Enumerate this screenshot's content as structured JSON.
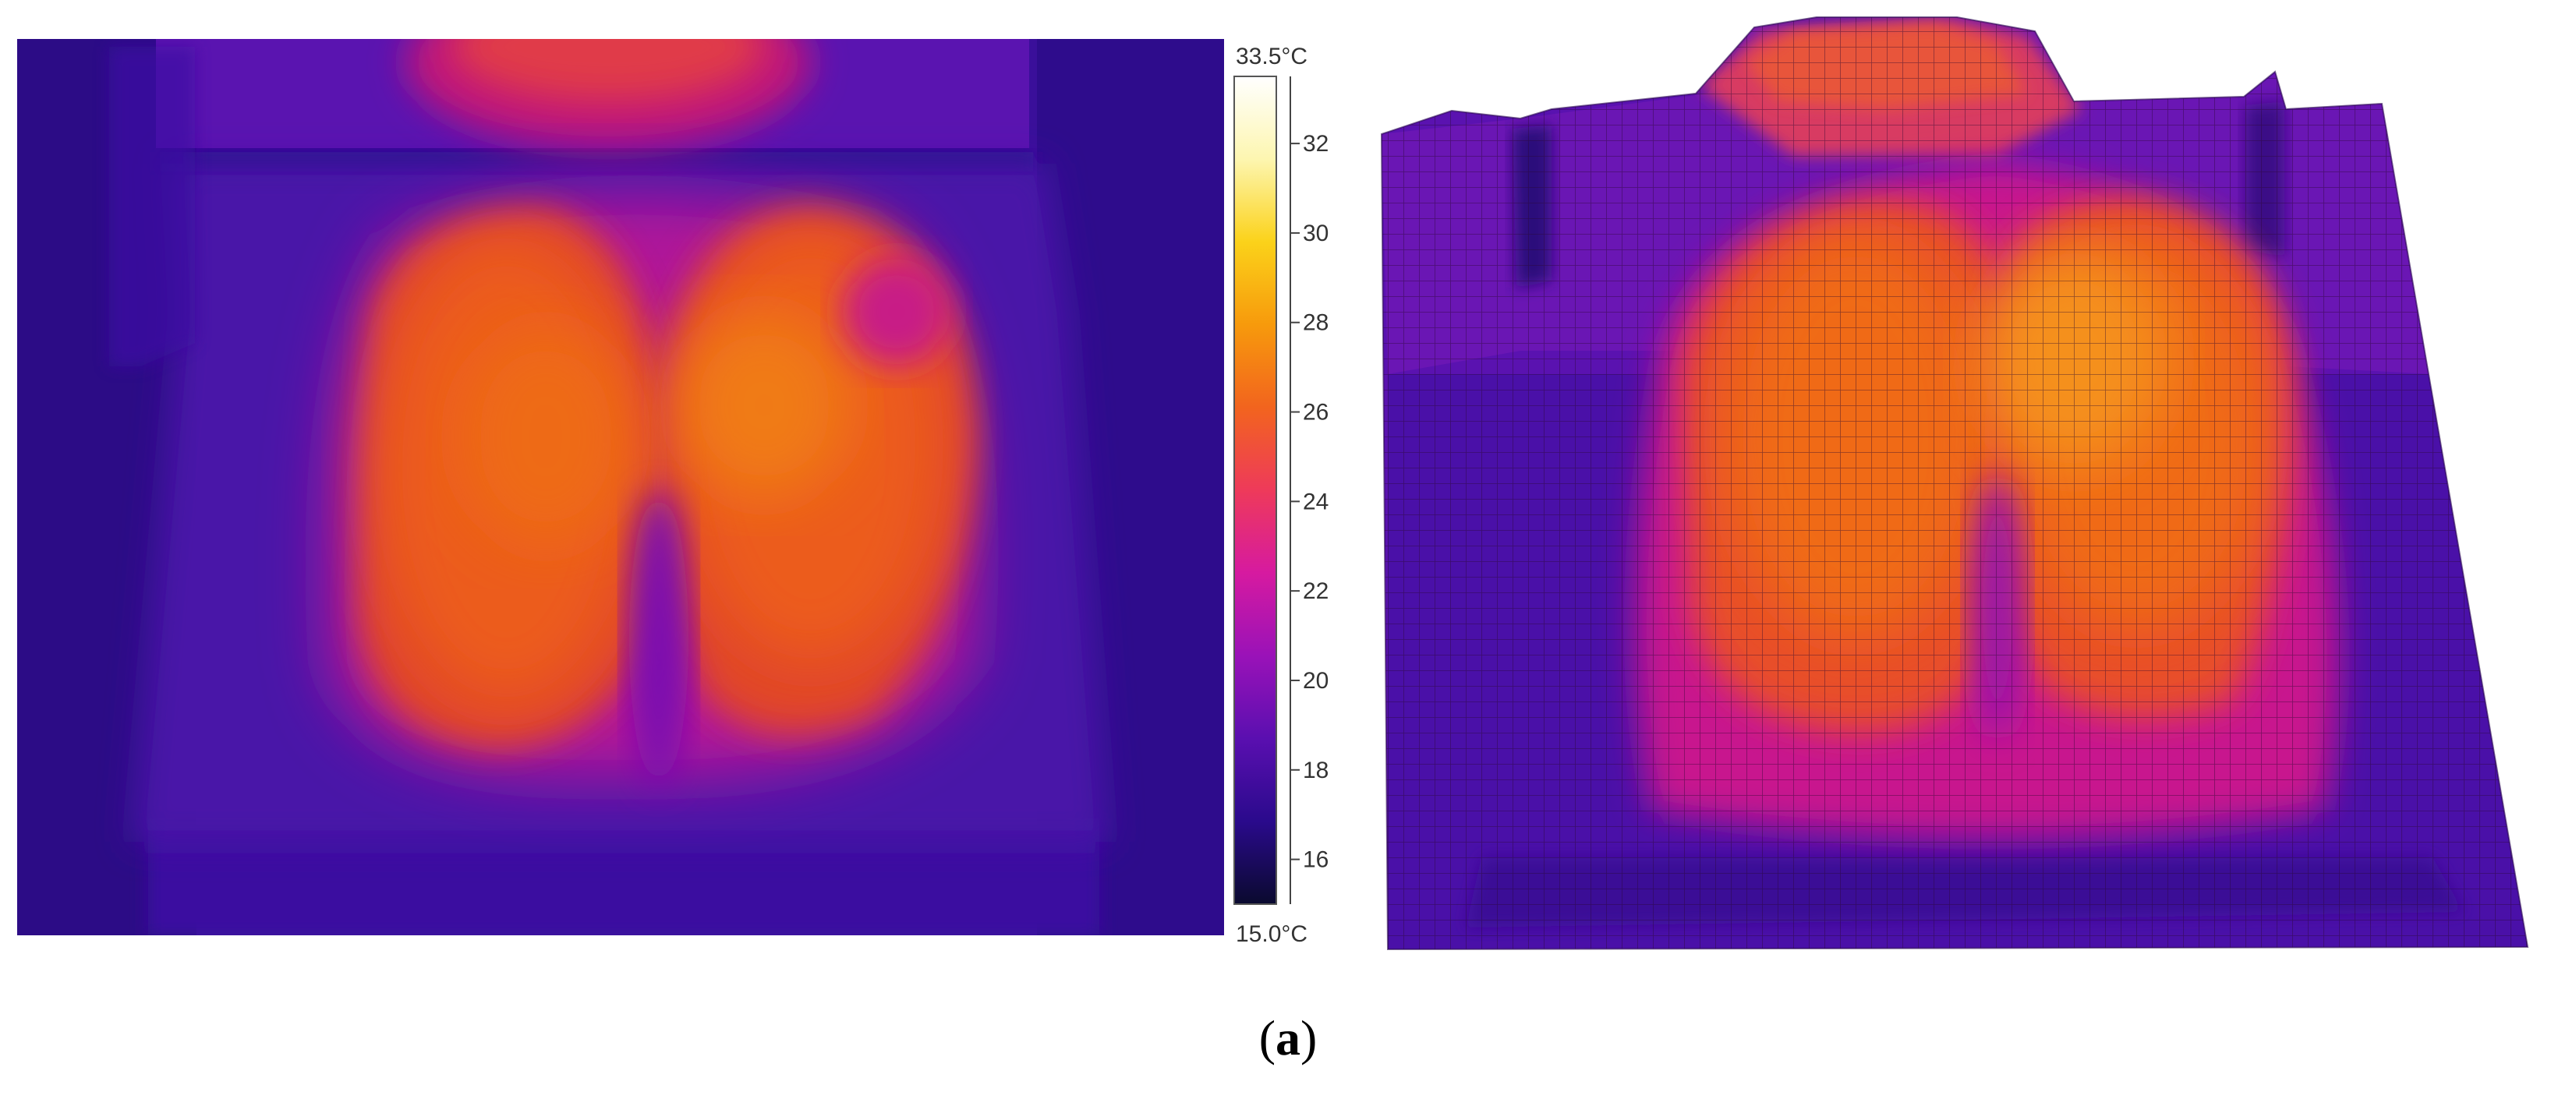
{
  "colorbar": {
    "max_label": "33.5°C",
    "min_label": "15.0°C",
    "min_value": 15.0,
    "max_value": 33.5,
    "ticks": [
      {
        "value": 16,
        "label": "16"
      },
      {
        "value": 18,
        "label": "18"
      },
      {
        "value": 20,
        "label": "20"
      },
      {
        "value": 22,
        "label": "22"
      },
      {
        "value": 24,
        "label": "24"
      },
      {
        "value": 26,
        "label": "26"
      },
      {
        "value": 28,
        "label": "28"
      },
      {
        "value": 30,
        "label": "30"
      },
      {
        "value": 32,
        "label": "32"
      }
    ],
    "colormap": [
      "#0a0a2e",
      "#2a0a8c",
      "#5a0fb0",
      "#9a12b8",
      "#d61aa0",
      "#ee3a5a",
      "#f2641e",
      "#f79a0c",
      "#fbd21a",
      "#fdf6b0",
      "#ffffff"
    ]
  },
  "caption": {
    "open": "(",
    "letter": "a",
    "close": ")"
  }
}
